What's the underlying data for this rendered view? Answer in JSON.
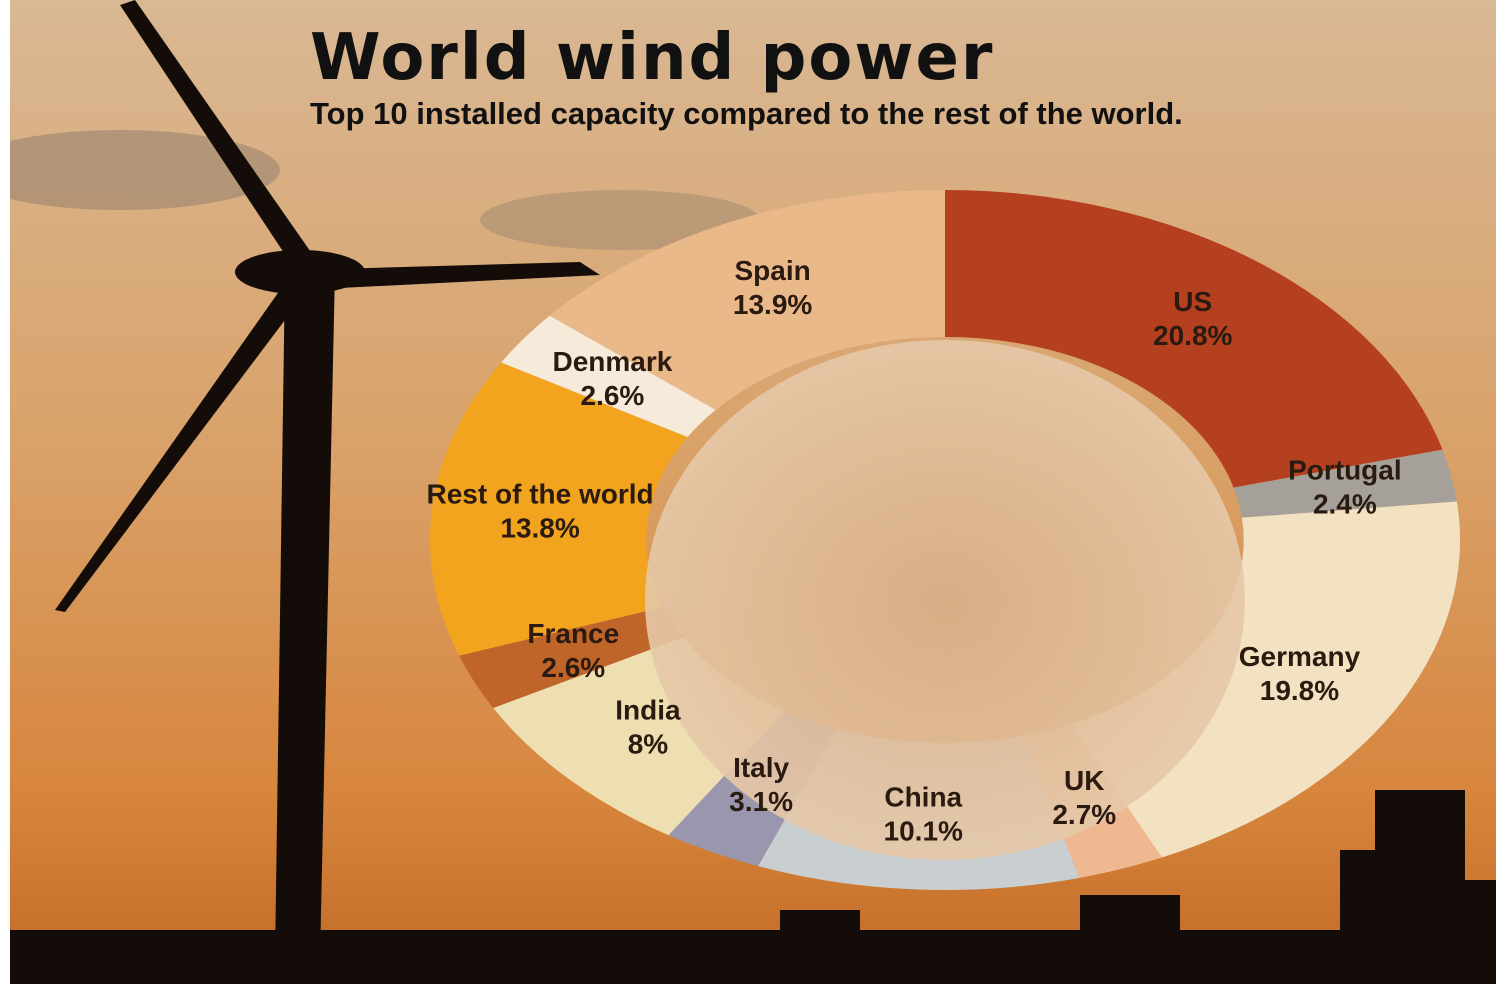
{
  "chart_data": {
    "type": "pie",
    "title": "World wind power",
    "subtitle": "Top 10 installed capacity compared to the rest of the world.",
    "categories": [
      "US",
      "Portugal",
      "Germany",
      "UK",
      "China",
      "Italy",
      "India",
      "France",
      "Rest of the world",
      "Denmark",
      "Spain"
    ],
    "values": [
      20.8,
      2.4,
      19.8,
      2.7,
      10.1,
      3.1,
      8,
      2.6,
      13.8,
      2.6,
      13.9
    ],
    "value_labels": [
      "20.8%",
      "2.4%",
      "19.8%",
      "2.7%",
      "10.1%",
      "3.1%",
      "8%",
      "2.6%",
      "13.8%",
      "2.6%",
      "13.9%"
    ],
    "colors": [
      "#b5401f",
      "#a5a09a",
      "#f3e2c2",
      "#efb890",
      "#c9cfd0",
      "#9a96ae",
      "#eddfb2",
      "#c0652a",
      "#f2a41e",
      "#f6eadb",
      "#e9b98a"
    ]
  }
}
